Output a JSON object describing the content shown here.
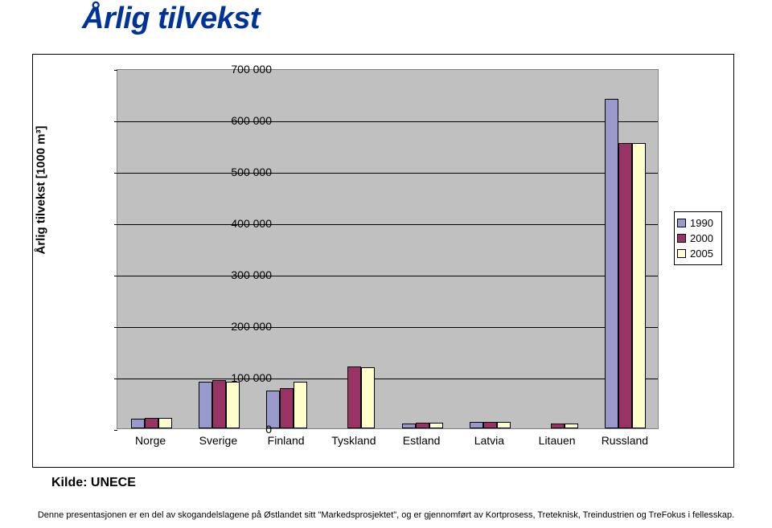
{
  "page_title": "Årlig tilvekst",
  "chart": {
    "type": "bar",
    "y_axis_label": "Årlig tilvekst [1000 m³]",
    "ylim": [
      0,
      700000
    ],
    "ytick_step": 100000,
    "y_ticks": [
      "0",
      "100 000",
      "200 000",
      "300 000",
      "400 000",
      "500 000",
      "600 000",
      "700 000"
    ],
    "categories": [
      "Norge",
      "Sverige",
      "Finland",
      "Tyskland",
      "Estland",
      "Latvia",
      "Litauen",
      "Russland"
    ],
    "series": [
      {
        "name": "1990",
        "color": "#9999cc",
        "values": [
          18000,
          91000,
          73000,
          0,
          10000,
          13000,
          0,
          640000
        ]
      },
      {
        "name": "2000",
        "color": "#993366",
        "values": [
          20000,
          94000,
          78000,
          120000,
          11000,
          13000,
          9000,
          555000
        ]
      },
      {
        "name": "2005",
        "color": "#ffffcc",
        "values": [
          20000,
          90000,
          90000,
          118000,
          11000,
          13000,
          10000,
          555000
        ]
      }
    ],
    "plot_bg": "#c0c0c0",
    "grid_color": "#000000",
    "label_fontsize": 14
  },
  "source": "Kilde: UNECE",
  "footer": "Denne presentasjonen er en del av skogandelslagene på Østlandet sitt \"Markedsprosjektet\", og er gjennomført av Kortprosess, Treteknisk, Treindustrien og TreFokus i fellesskap."
}
